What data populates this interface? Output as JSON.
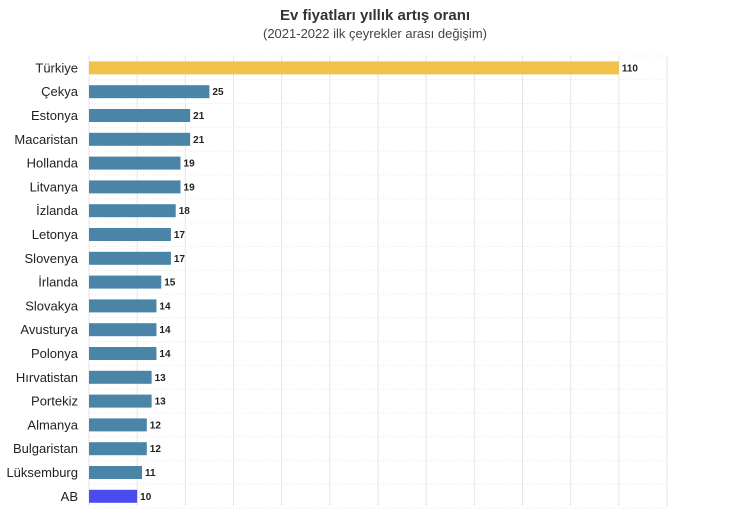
{
  "chart_data": {
    "type": "bar",
    "orientation": "horizontal",
    "title": "Ev fiyatları yıllık artış oranı",
    "subtitle": "(2021-2022 ilk çeyrekler arası değişim)",
    "categories": [
      "Türkiye",
      "Çekya",
      "Estonya",
      "Macaristan",
      "Hollanda",
      "Litvanya",
      "İzlanda",
      "Letonya",
      "Slovenya",
      "İrlanda",
      "Slovakya",
      "Avusturya",
      "Polonya",
      "Hırvatistan",
      "Portekiz",
      "Almanya",
      "Bulgaristan",
      "Lüksemburg",
      "AB"
    ],
    "values": [
      110,
      25,
      21,
      21,
      19,
      19,
      18,
      17,
      17,
      15,
      14,
      14,
      14,
      13,
      13,
      12,
      12,
      11,
      10
    ],
    "value_labels": [
      "110",
      "25",
      "21",
      "21",
      "19",
      "19",
      "18",
      "17",
      "17",
      "15",
      "14",
      "14",
      "14",
      "13",
      "13",
      "12",
      "12",
      "11",
      "10"
    ],
    "xlim": [
      0,
      120
    ],
    "grid": true,
    "colors": {
      "default": "#4a84a6",
      "highlight_turkiye": "#f0c24b",
      "highlight_ab": "#4b4cf0"
    },
    "bar_colors": [
      "#f0c24b",
      "#4a84a6",
      "#4a84a6",
      "#4a84a6",
      "#4a84a6",
      "#4a84a6",
      "#4a84a6",
      "#4a84a6",
      "#4a84a6",
      "#4a84a6",
      "#4a84a6",
      "#4a84a6",
      "#4a84a6",
      "#4a84a6",
      "#4a84a6",
      "#4a84a6",
      "#4a84a6",
      "#4a84a6",
      "#4b4cf0"
    ]
  }
}
